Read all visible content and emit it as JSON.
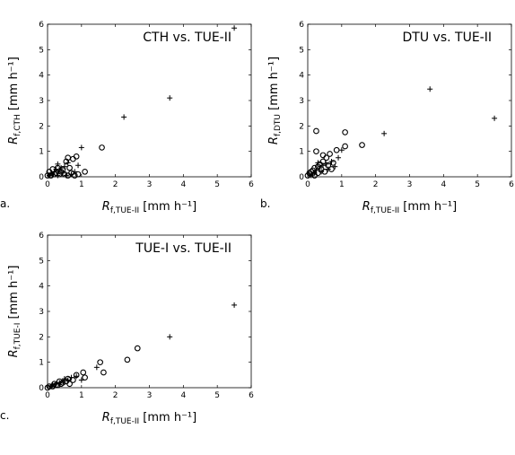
{
  "chart_data": [
    {
      "type": "scatter",
      "panel_label": "a.",
      "title": "CTH vs. TUE-II",
      "xlabel": {
        "main": "R",
        "sub": "f,TUE-II",
        "unit": " [mm h⁻¹]"
      },
      "ylabel": {
        "main": "R",
        "sub": "f,CTH",
        "unit": " [mm h⁻¹]"
      },
      "xlim": [
        0,
        6
      ],
      "ylim": [
        0,
        6
      ],
      "xticks": [
        "0",
        "1",
        "2",
        "3",
        "4",
        "5",
        "6"
      ],
      "yticks": [
        "0",
        "1",
        "2",
        "3",
        "4",
        "5",
        "6"
      ],
      "grid": false,
      "series": [
        {
          "marker": "plus",
          "points": [
            [
              5.5,
              5.85
            ],
            [
              3.6,
              3.1
            ],
            [
              2.25,
              2.35
            ],
            [
              1.0,
              1.15
            ],
            [
              0.9,
              0.45
            ],
            [
              0.6,
              0.55
            ],
            [
              0.5,
              0.4
            ],
            [
              0.4,
              0.35
            ],
            [
              0.35,
              0.25
            ],
            [
              0.3,
              0.5
            ],
            [
              0.25,
              0.3
            ],
            [
              0.2,
              0.2
            ],
            [
              0.15,
              0.1
            ],
            [
              0.1,
              0.15
            ],
            [
              0.45,
              0.15
            ],
            [
              0.55,
              0.05
            ],
            [
              0.7,
              0.1
            ],
            [
              0.8,
              0.2
            ],
            [
              0.05,
              0.05
            ],
            [
              0.3,
              0.05
            ]
          ]
        },
        {
          "marker": "circle",
          "points": [
            [
              1.6,
              1.15
            ],
            [
              1.1,
              0.2
            ],
            [
              0.85,
              0.8
            ],
            [
              0.75,
              0.7
            ],
            [
              0.6,
              0.75
            ],
            [
              0.55,
              0.6
            ],
            [
              0.65,
              0.35
            ],
            [
              0.45,
              0.3
            ],
            [
              0.4,
              0.2
            ],
            [
              0.35,
              0.1
            ],
            [
              0.2,
              0.1
            ],
            [
              0.1,
              0.05
            ],
            [
              0.05,
              0.2
            ],
            [
              0.25,
              0.15
            ],
            [
              0.3,
              0.35
            ],
            [
              0.5,
              0.1
            ],
            [
              0.7,
              0.15
            ],
            [
              0.8,
              0.05
            ],
            [
              0.15,
              0.3
            ],
            [
              0.0,
              0.05
            ],
            [
              0.9,
              0.1
            ],
            [
              0.6,
              0.05
            ]
          ]
        }
      ]
    },
    {
      "type": "scatter",
      "panel_label": "b.",
      "title": "DTU vs. TUE-II",
      "xlabel": {
        "main": "R",
        "sub": "f,TUE-II",
        "unit": " [mm h⁻¹]"
      },
      "ylabel": {
        "main": "R",
        "sub": "f,DTU",
        "unit": " [mm h⁻¹]"
      },
      "xlim": [
        0,
        6
      ],
      "ylim": [
        0,
        6
      ],
      "xticks": [
        "0",
        "1",
        "2",
        "3",
        "4",
        "5",
        "6"
      ],
      "yticks": [
        "0",
        "1",
        "2",
        "3",
        "4",
        "5",
        "6"
      ],
      "grid": false,
      "series": [
        {
          "marker": "plus",
          "points": [
            [
              3.6,
              3.45
            ],
            [
              5.5,
              2.3
            ],
            [
              2.25,
              1.7
            ],
            [
              1.0,
              1.05
            ],
            [
              0.9,
              0.75
            ],
            [
              0.7,
              0.6
            ],
            [
              0.55,
              0.5
            ],
            [
              0.45,
              0.45
            ],
            [
              0.35,
              0.35
            ],
            [
              0.25,
              0.25
            ],
            [
              0.2,
              0.15
            ],
            [
              0.15,
              0.1
            ],
            [
              0.1,
              0.05
            ],
            [
              0.6,
              0.3
            ],
            [
              0.4,
              0.2
            ],
            [
              0.3,
              0.55
            ],
            [
              0.8,
              0.4
            ],
            [
              0.05,
              0.1
            ]
          ]
        },
        {
          "marker": "circle",
          "points": [
            [
              0.25,
              1.8
            ],
            [
              1.1,
              1.75
            ],
            [
              1.6,
              1.25
            ],
            [
              1.1,
              1.2
            ],
            [
              0.85,
              1.05
            ],
            [
              0.65,
              0.9
            ],
            [
              0.25,
              1.0
            ],
            [
              0.55,
              0.75
            ],
            [
              0.45,
              0.6
            ],
            [
              0.35,
              0.5
            ],
            [
              0.3,
              0.4
            ],
            [
              0.2,
              0.35
            ],
            [
              0.15,
              0.25
            ],
            [
              0.1,
              0.2
            ],
            [
              0.05,
              0.15
            ],
            [
              0.0,
              0.05
            ],
            [
              0.4,
              0.3
            ],
            [
              0.5,
              0.2
            ],
            [
              0.6,
              0.45
            ],
            [
              0.75,
              0.55
            ],
            [
              0.2,
              0.05
            ],
            [
              0.7,
              0.3
            ],
            [
              0.3,
              0.15
            ],
            [
              0.45,
              0.85
            ]
          ]
        }
      ]
    },
    {
      "type": "scatter",
      "panel_label": "c.",
      "title": "TUE-I vs. TUE-II",
      "xlabel": {
        "main": "R",
        "sub": "f,TUE-II",
        "unit": " [mm h⁻¹]"
      },
      "ylabel": {
        "main": "R",
        "sub": "f,TUE-I",
        "unit": " [mm h⁻¹]"
      },
      "xlim": [
        0,
        6
      ],
      "ylim": [
        0,
        6
      ],
      "xticks": [
        "0",
        "1",
        "2",
        "3",
        "4",
        "5",
        "6"
      ],
      "yticks": [
        "0",
        "1",
        "2",
        "3",
        "4",
        "5",
        "6"
      ],
      "grid": false,
      "series": [
        {
          "marker": "plus",
          "points": [
            [
              5.5,
              3.25
            ],
            [
              3.6,
              2.0
            ],
            [
              1.45,
              0.8
            ],
            [
              1.0,
              0.3
            ],
            [
              0.85,
              0.45
            ],
            [
              0.6,
              0.3
            ],
            [
              0.45,
              0.25
            ],
            [
              0.35,
              0.2
            ],
            [
              0.25,
              0.15
            ],
            [
              0.15,
              0.1
            ],
            [
              0.1,
              0.05
            ],
            [
              0.5,
              0.35
            ],
            [
              0.7,
              0.4
            ]
          ]
        },
        {
          "marker": "circle",
          "points": [
            [
              2.65,
              1.55
            ],
            [
              2.35,
              1.1
            ],
            [
              1.55,
              1.0
            ],
            [
              1.65,
              0.6
            ],
            [
              1.05,
              0.6
            ],
            [
              1.1,
              0.4
            ],
            [
              0.85,
              0.5
            ],
            [
              0.75,
              0.3
            ],
            [
              0.6,
              0.35
            ],
            [
              0.55,
              0.25
            ],
            [
              0.45,
              0.2
            ],
            [
              0.4,
              0.15
            ],
            [
              0.3,
              0.1
            ],
            [
              0.2,
              0.15
            ],
            [
              0.15,
              0.05
            ],
            [
              0.05,
              0.05
            ],
            [
              0.0,
              0.0
            ],
            [
              0.65,
              0.15
            ],
            [
              0.35,
              0.25
            ],
            [
              0.25,
              0.1
            ]
          ]
        }
      ]
    }
  ]
}
